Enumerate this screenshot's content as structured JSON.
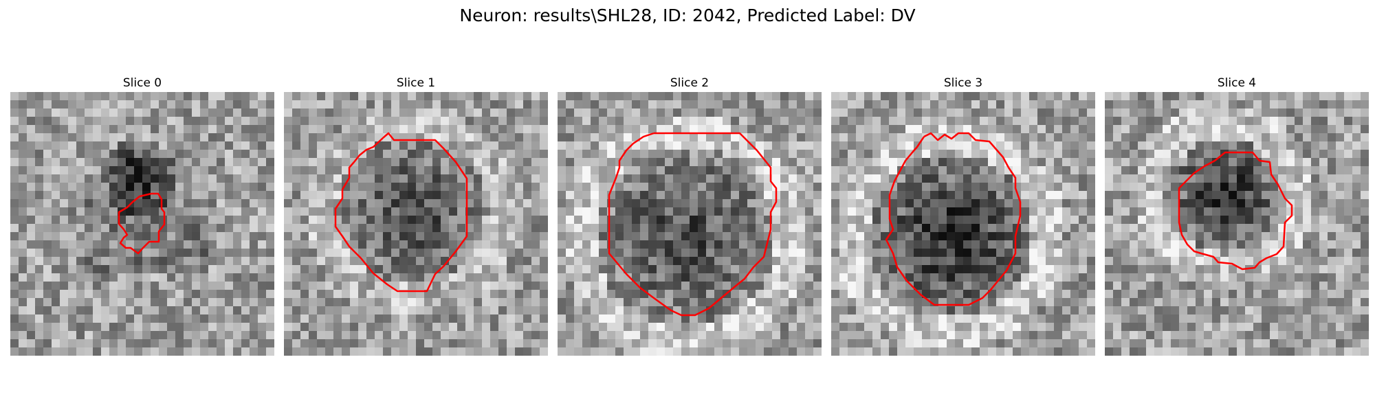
{
  "figure": {
    "title": "Neuron: results\\SHL28, ID: 2042, Predicted Label: DV",
    "contour_color": "#ff0000",
    "colormap": "gray"
  },
  "panels": [
    {
      "title": "Slice 0"
    },
    {
      "title": "Slice 1"
    },
    {
      "title": "Slice 2"
    },
    {
      "title": "Slice 3"
    },
    {
      "title": "Slice 4"
    }
  ]
}
